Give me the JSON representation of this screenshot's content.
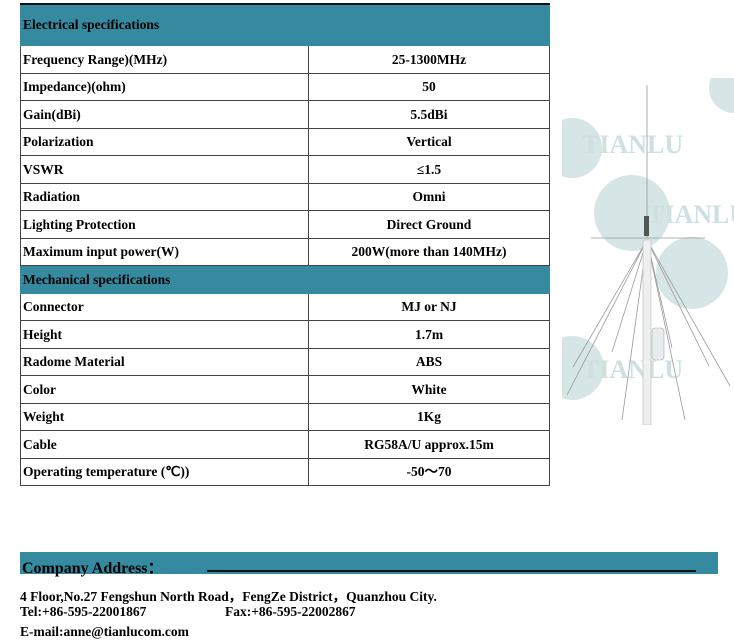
{
  "electrical": {
    "title": "Electrical specifications",
    "rows": [
      {
        "label": "Frequency Range)(MHz)",
        "value": "25-1300MHz"
      },
      {
        "label": "Impedance)(ohm)",
        "value": "50"
      },
      {
        "label": "Gain(dBi)",
        "value": "5.5dBi"
      },
      {
        "label": "Polarization",
        "value": "Vertical"
      },
      {
        "label": "VSWR",
        "value": "≤1.5"
      },
      {
        "label": "Radiation",
        "value": "Omni"
      },
      {
        "label": "Lighting Protection",
        "value": "Direct Ground"
      },
      {
        "label": "Maximum input power(W)",
        "value": "200W(more than 140MHz)"
      }
    ]
  },
  "mechanical": {
    "title": "Mechanical specifications",
    "rows": [
      {
        "label": "Connector",
        "value": "MJ or NJ"
      },
      {
        "label": "Height",
        "value": "1.7m"
      },
      {
        "label": "Radome Material",
        "value": "ABS"
      },
      {
        "label": "Color",
        "value": "White"
      },
      {
        "label": "Weight",
        "value": "1Kg"
      },
      {
        "label": "Cable",
        "value": "RG58A/U approx.15m"
      },
      {
        "label": "Operating temperature (℃))",
        "value": "-50～70"
      }
    ]
  },
  "photo": {
    "watermark": "TIANLU",
    "logo": "TL"
  },
  "company": {
    "title": "Company Address：",
    "address": "4 Floor,No.27 Fengshun North Road，FengZe District，Quanzhou City.",
    "tel": "Tel:+86-595-22001867",
    "fax": "Fax:+86-595-22002867",
    "email": "E-mail:anne@tianlucom.com"
  },
  "colors": {
    "header": "#368aa0"
  }
}
